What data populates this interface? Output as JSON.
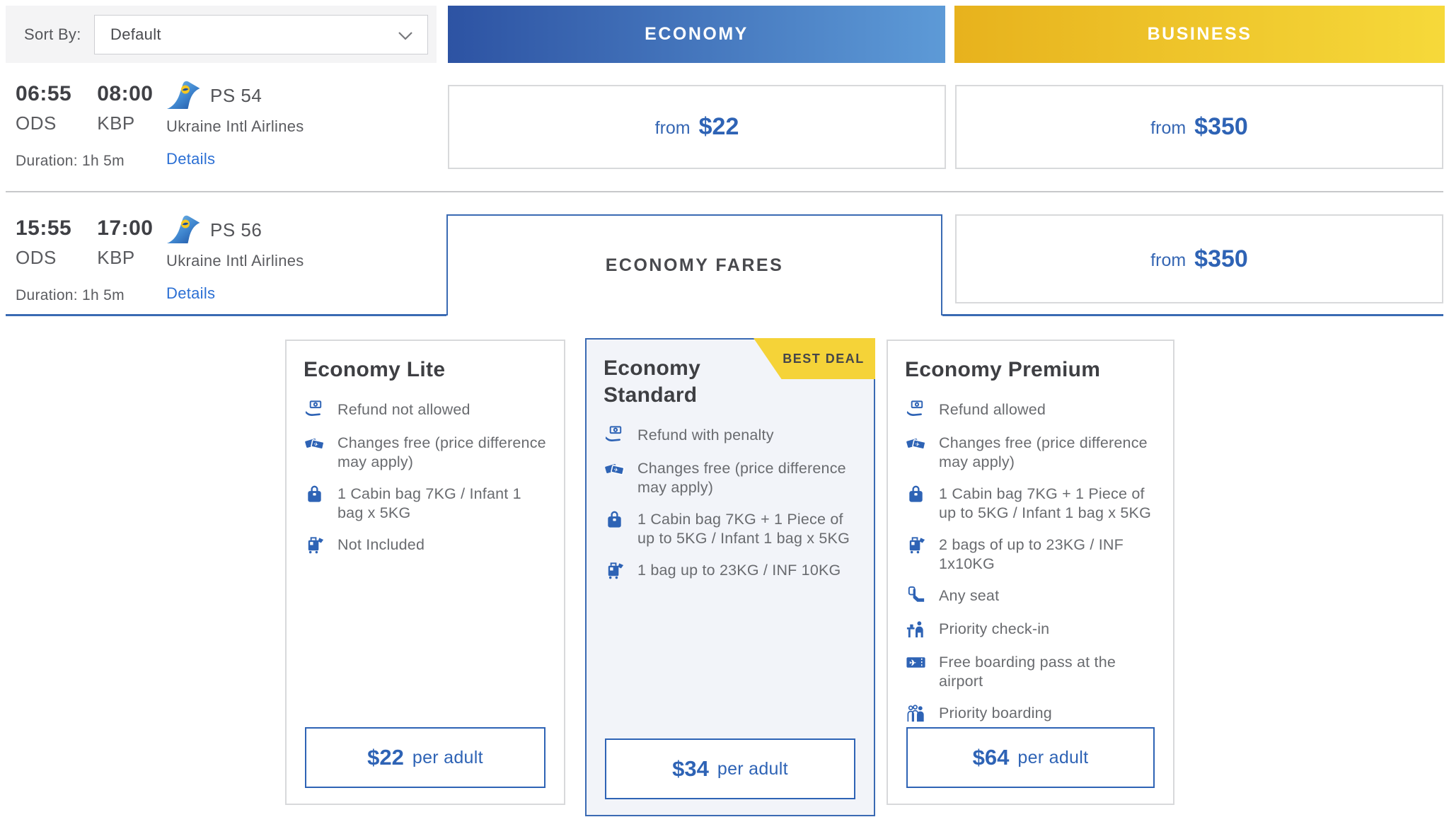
{
  "sort": {
    "label": "Sort By:",
    "value": "Default"
  },
  "columns": {
    "economy": "ECONOMY",
    "business": "BUSINESS"
  },
  "flights": [
    {
      "dep_time": "06:55",
      "dep_code": "ODS",
      "arr_time": "08:00",
      "arr_code": "KBP",
      "flight_no": "PS 54",
      "airline": "Ukraine Intl Airlines",
      "details_label": "Details",
      "duration": "Duration: 1h 5m",
      "economy_from": "from",
      "economy_price": "$22",
      "business_from": "from",
      "business_price": "$350"
    },
    {
      "dep_time": "15:55",
      "dep_code": "ODS",
      "arr_time": "17:00",
      "arr_code": "KBP",
      "flight_no": "PS 56",
      "airline": "Ukraine Intl Airlines",
      "details_label": "Details",
      "duration": "Duration: 1h 5m",
      "economy_expanded_label": "ECONOMY FARES",
      "business_from": "from",
      "business_price": "$350"
    }
  ],
  "fare_cards": [
    {
      "title": "Economy Lite",
      "badge": "",
      "highlight": false,
      "features": [
        {
          "icon": "refund-icon",
          "text": "Refund not allowed"
        },
        {
          "icon": "changes-icon",
          "text": "Changes free (price difference may apply)"
        },
        {
          "icon": "cabin-bag-icon",
          "text": "1 Cabin bag 7KG / Infant 1 bag x 5KG"
        },
        {
          "icon": "checked-bag-icon",
          "text": "Not Included"
        }
      ],
      "price": "$22",
      "price_suffix": "per adult"
    },
    {
      "title": "Economy Standard",
      "badge": "BEST DEAL",
      "highlight": true,
      "features": [
        {
          "icon": "refund-icon",
          "text": "Refund with penalty"
        },
        {
          "icon": "changes-icon",
          "text": "Changes free (price difference may apply)"
        },
        {
          "icon": "cabin-bag-icon",
          "text": "1 Cabin bag 7KG + 1 Piece of up to 5KG / Infant 1 bag x 5KG"
        },
        {
          "icon": "checked-bag-icon",
          "text": "1 bag up to 23KG / INF 10KG"
        }
      ],
      "price": "$34",
      "price_suffix": "per adult"
    },
    {
      "title": "Economy Premium",
      "badge": "",
      "highlight": false,
      "features": [
        {
          "icon": "refund-icon",
          "text": "Refund allowed"
        },
        {
          "icon": "changes-icon",
          "text": "Changes free (price difference may apply)"
        },
        {
          "icon": "cabin-bag-icon",
          "text": "1 Cabin bag 7KG + 1 Piece of up to 5KG / Infant 1 bag x 5KG"
        },
        {
          "icon": "checked-bag-icon",
          "text": "2 bags of up to 23KG / INF 1x10KG"
        },
        {
          "icon": "seat-icon",
          "text": "Any seat"
        },
        {
          "icon": "priority-checkin-icon",
          "text": "Priority check-in"
        },
        {
          "icon": "boarding-pass-icon",
          "text": "Free boarding pass at the airport"
        },
        {
          "icon": "priority-boarding-icon",
          "text": "Priority boarding"
        }
      ],
      "price": "$64",
      "price_suffix": "per adult"
    }
  ],
  "colors": {
    "accent_blue": "#2e63b5",
    "tab_blue": "#3a6ab3",
    "link_blue": "#2b6fd4",
    "economy_gradient_start": "#2d53a3",
    "economy_gradient_end": "#5d9ad7",
    "business_gradient_start": "#e7b21d",
    "business_gradient_end": "#f6d93a",
    "badge_yellow": "#f5d338"
  }
}
